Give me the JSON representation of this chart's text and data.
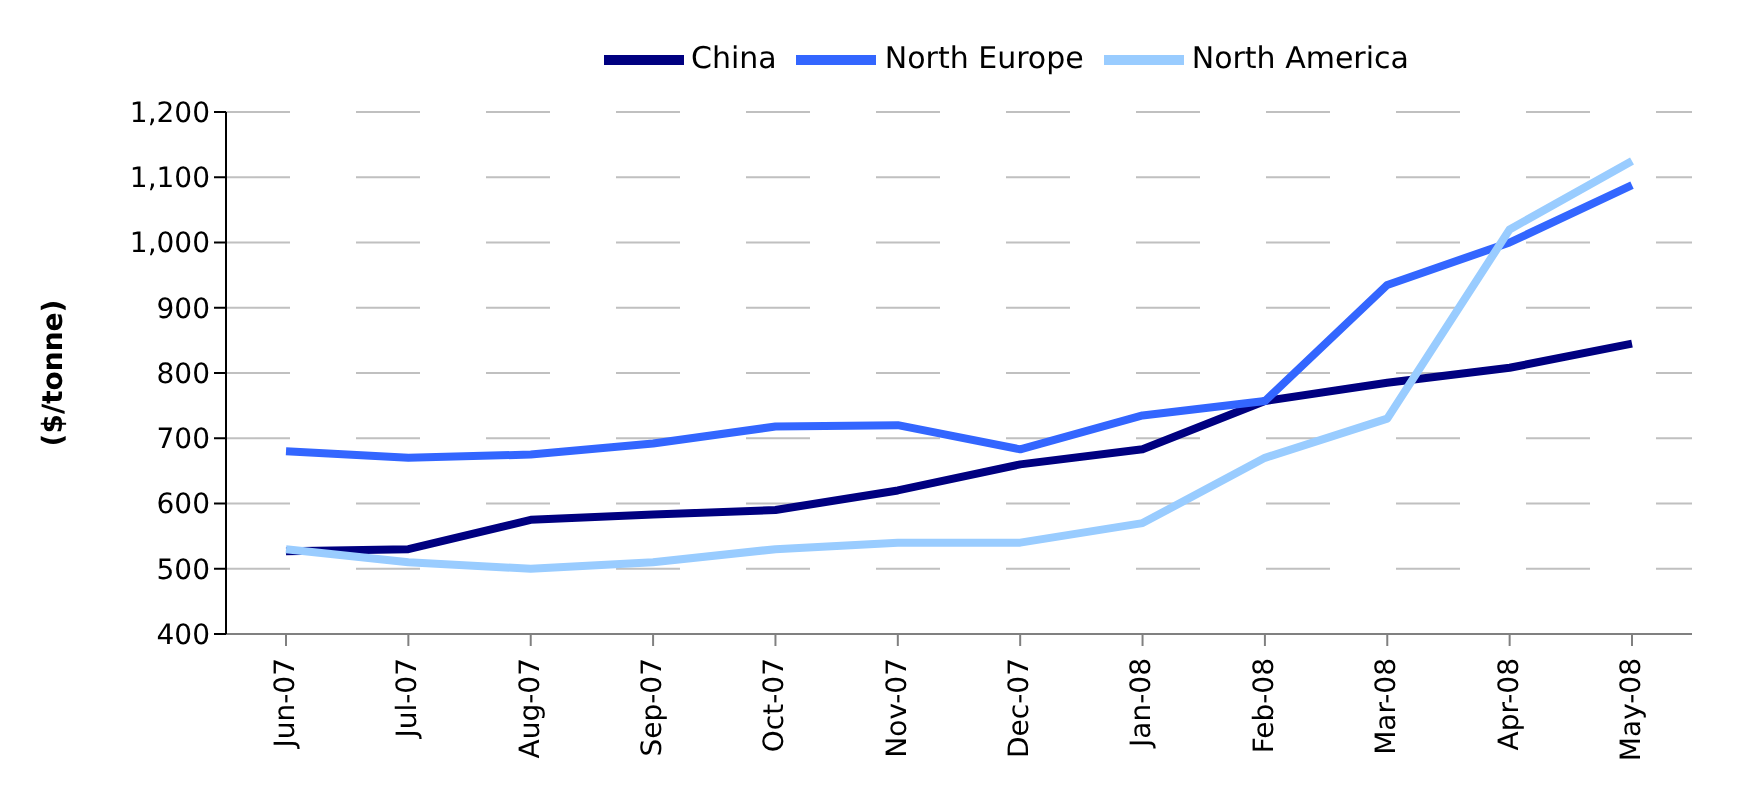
{
  "chart_data": {
    "type": "line",
    "ylabel": "($/tonne)",
    "categories": [
      "Jun-07",
      "Jul-07",
      "Aug-07",
      "Sep-07",
      "Oct-07",
      "Nov-07",
      "Dec-07",
      "Jan-08",
      "Feb-08",
      "Mar-08",
      "Apr-08",
      "May-08"
    ],
    "series": [
      {
        "name": "China",
        "color": "#000080",
        "values": [
          527,
          530,
          575,
          583,
          590,
          620,
          660,
          683,
          757,
          785,
          808,
          845
        ]
      },
      {
        "name": "North Europe",
        "color": "#3366ff",
        "values": [
          680,
          670,
          675,
          692,
          718,
          720,
          683,
          735,
          757,
          935,
          1000,
          1088
        ]
      },
      {
        "name": "North America",
        "color": "#99ccff",
        "values": [
          530,
          510,
          500,
          510,
          530,
          540,
          540,
          570,
          670,
          730,
          1020,
          1125
        ]
      }
    ],
    "ylim": [
      400,
      1200
    ],
    "yticks": [
      {
        "value": 400,
        "label": "400"
      },
      {
        "value": 500,
        "label": "500"
      },
      {
        "value": 600,
        "label": "600"
      },
      {
        "value": 700,
        "label": "700"
      },
      {
        "value": 800,
        "label": "800"
      },
      {
        "value": 900,
        "label": "900"
      },
      {
        "value": 1000,
        "label": "1,000"
      },
      {
        "value": 1100,
        "label": "1,100"
      },
      {
        "value": 1200,
        "label": "1,200"
      }
    ],
    "grid": "y",
    "legend": "top",
    "marker": "none",
    "line_style": "solid"
  }
}
